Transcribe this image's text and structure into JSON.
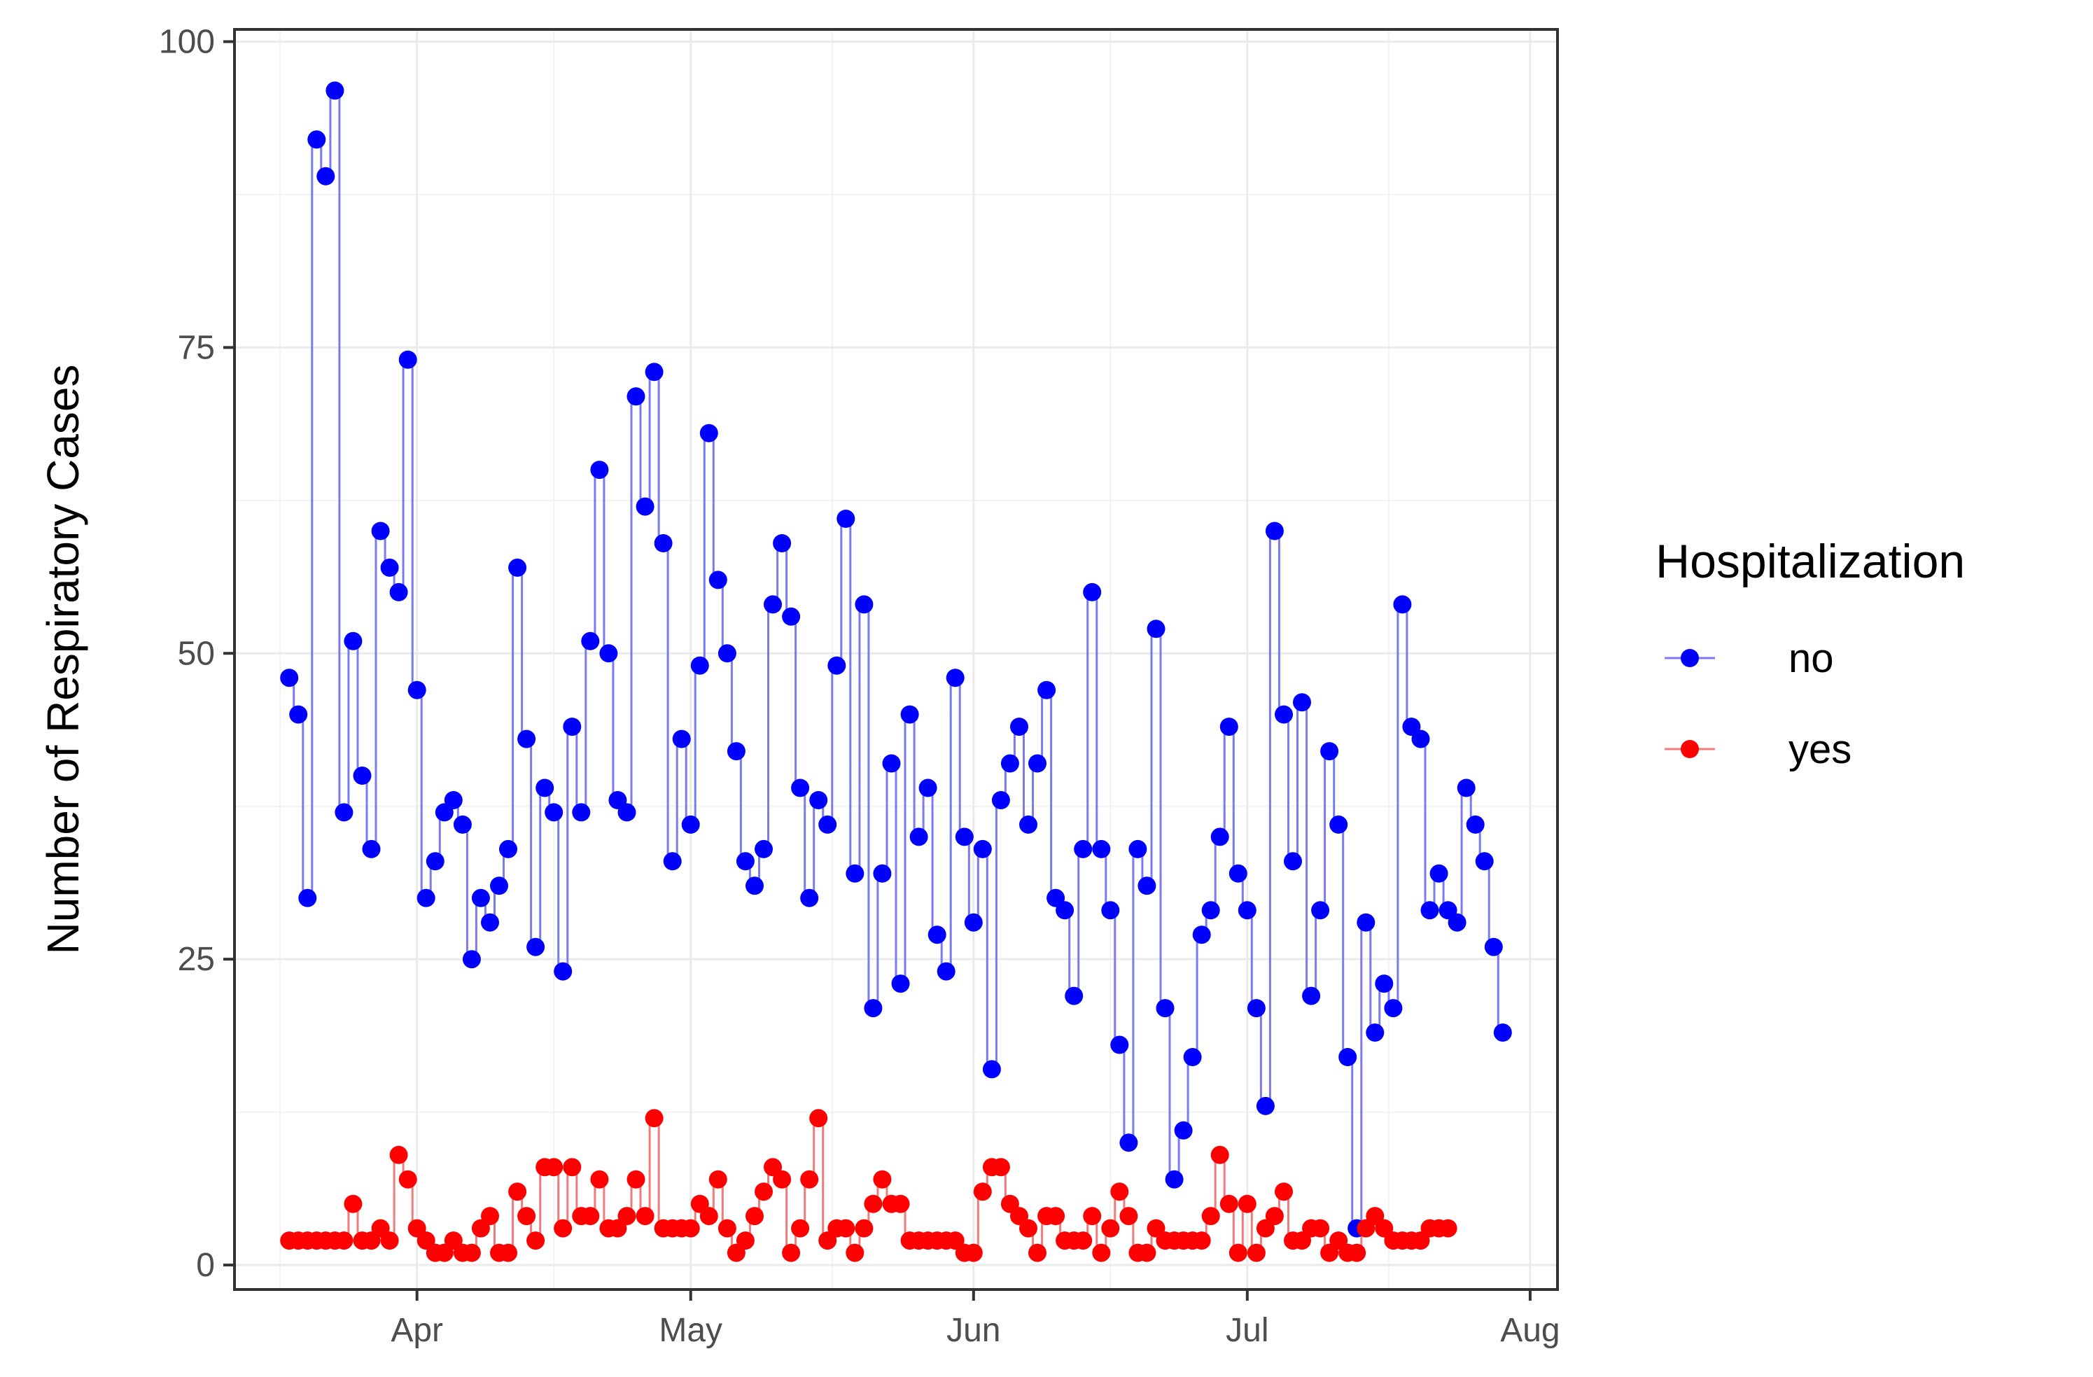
{
  "chart_data": {
    "type": "line",
    "title": "",
    "xlabel": "",
    "ylabel": "Number of Respiratory Cases",
    "x_start_date": "2020-03-18",
    "x_ticks": [
      {
        "label": "Apr",
        "date": "2020-04-01"
      },
      {
        "label": "May",
        "date": "2020-05-01"
      },
      {
        "label": "Jun",
        "date": "2020-06-01"
      },
      {
        "label": "Jul",
        "date": "2020-07-01"
      },
      {
        "label": "Aug",
        "date": "2020-08-01"
      }
    ],
    "y_ticks": [
      "0",
      "25",
      "50",
      "75",
      "100"
    ],
    "ylim": [
      -2,
      101
    ],
    "grid": true,
    "legend": {
      "title": "Hospitalization",
      "position": "right"
    },
    "series": [
      {
        "name": "no",
        "color": "#0000ff",
        "line_color": "#7b7bf0",
        "values": [
          48,
          45,
          30,
          92,
          89,
          96,
          37,
          51,
          40,
          34,
          60,
          57,
          55,
          74,
          47,
          30,
          33,
          37,
          38,
          36,
          25,
          30,
          28,
          31,
          34,
          57,
          43,
          26,
          39,
          37,
          24,
          44,
          37,
          51,
          65,
          50,
          38,
          37,
          71,
          62,
          73,
          59,
          33,
          43,
          36,
          49,
          68,
          56,
          50,
          42,
          33,
          31,
          34,
          54,
          59,
          53,
          39,
          30,
          38,
          36,
          49,
          61,
          32,
          54,
          21,
          32,
          41,
          23,
          45,
          35,
          39,
          27,
          24,
          48,
          35,
          28,
          34,
          16,
          38,
          41,
          44,
          36,
          41,
          47,
          30,
          29,
          22,
          34,
          55,
          34,
          29,
          18,
          10,
          34,
          31,
          52,
          21,
          7,
          11,
          17,
          27,
          29,
          35,
          44,
          32,
          29,
          21,
          13,
          60,
          45,
          33,
          46,
          22,
          29,
          42,
          36,
          17,
          3,
          28,
          19,
          23,
          21,
          54,
          44,
          43,
          29,
          32,
          29,
          28,
          39,
          36,
          33,
          26,
          19
        ]
      },
      {
        "name": "yes",
        "color": "#ff0000",
        "line_color": "#f07b7b",
        "values": [
          2,
          2,
          2,
          2,
          2,
          2,
          2,
          5,
          2,
          2,
          3,
          2,
          9,
          7,
          3,
          2,
          1,
          1,
          2,
          1,
          1,
          3,
          4,
          1,
          1,
          6,
          4,
          2,
          8,
          8,
          3,
          8,
          4,
          4,
          7,
          3,
          3,
          4,
          7,
          4,
          12,
          3,
          3,
          3,
          3,
          5,
          4,
          7,
          3,
          1,
          2,
          4,
          6,
          8,
          7,
          1,
          3,
          7,
          12,
          2,
          3,
          3,
          1,
          3,
          5,
          7,
          5,
          5,
          2,
          2,
          2,
          2,
          2,
          2,
          1,
          1,
          6,
          8,
          8,
          5,
          4,
          3,
          1,
          4,
          4,
          2,
          2,
          2,
          4,
          1,
          3,
          6,
          4,
          1,
          1,
          3,
          2,
          2,
          2,
          2,
          2,
          4,
          9,
          5,
          1,
          5,
          1,
          3,
          4,
          6,
          2,
          2,
          3,
          3,
          1,
          2,
          1,
          1,
          3,
          4,
          3,
          2,
          2,
          2,
          2,
          3,
          3,
          3
        ]
      }
    ]
  }
}
